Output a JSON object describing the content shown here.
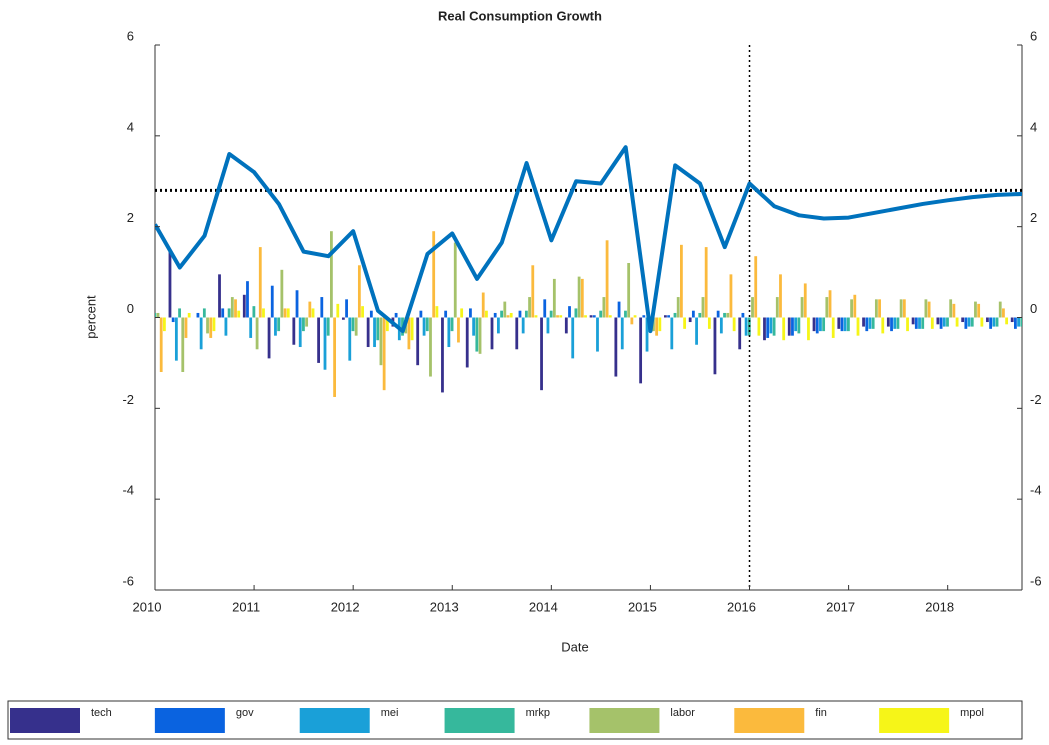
{
  "chart_data": {
    "type": "bar_line",
    "title": "Real Consumption Growth",
    "x_label": "Date",
    "y_label": "percent",
    "x": [
      2010,
      2010.25,
      2010.5,
      2010.75,
      2011,
      2011.25,
      2011.5,
      2011.75,
      2012,
      2012.25,
      2012.5,
      2012.75,
      2013,
      2013.25,
      2013.5,
      2013.75,
      2014,
      2014.25,
      2014.5,
      2014.75,
      2015,
      2015.25,
      2015.5,
      2015.75,
      2016,
      2016.25,
      2016.5,
      2016.75,
      2017,
      2017.25,
      2017.5,
      2017.75,
      2018,
      2018.25,
      2018.5,
      2018.75
    ],
    "xlim": [
      2010,
      2018.75
    ],
    "xticks": [
      2010,
      2011,
      2012,
      2013,
      2014,
      2015,
      2016,
      2017,
      2018
    ],
    "ylim": [
      -6,
      6
    ],
    "yticks": [
      6,
      4,
      2,
      0,
      -2,
      -4,
      -6
    ],
    "y2lim": [
      -6,
      6
    ],
    "y2ticks": [
      6,
      4,
      2,
      0,
      -2,
      -4,
      -6
    ],
    "hline": 2.8,
    "vline": 2016,
    "legend": "bottom",
    "series": [
      {
        "name": "tech",
        "color": "#36308c",
        "values": [
          -0.7,
          1.5,
          0,
          0.95,
          0.5,
          -0.9,
          -0.6,
          -1.0,
          -0.05,
          -0.65,
          -0.2,
          -1.05,
          -1.65,
          -1.1,
          -0.7,
          -0.7,
          -1.6,
          -0.35,
          0.05,
          -1.3,
          -1.45,
          0.05,
          -0.1,
          -1.25,
          -0.7,
          -0.5,
          -0.4,
          -0.3,
          -0.25,
          -0.2,
          -0.2,
          -0.15,
          -0.15,
          -0.1,
          -0.1,
          -0.1
        ]
      },
      {
        "name": "gov",
        "color": "#0a63e0",
        "values": [
          0,
          -0.1,
          0.1,
          0.2,
          0.8,
          0.7,
          0.6,
          0.45,
          0.4,
          0.15,
          0.1,
          0.15,
          0.15,
          0.2,
          0.1,
          0.15,
          0.4,
          0.25,
          0.05,
          0.35,
          0.05,
          0.05,
          0.15,
          0.15,
          0.1,
          -0.45,
          -0.4,
          -0.35,
          -0.3,
          -0.3,
          -0.3,
          -0.25,
          -0.25,
          -0.25,
          -0.25,
          -0.25
        ]
      },
      {
        "name": "mei",
        "color": "#1aa0d8",
        "values": [
          -0.4,
          -0.95,
          -0.7,
          -0.4,
          -0.45,
          -0.4,
          -0.65,
          -1.15,
          -0.95,
          -0.65,
          -0.5,
          -0.4,
          -0.65,
          -0.4,
          -0.35,
          -0.35,
          -0.35,
          -0.9,
          -0.75,
          -0.7,
          -0.75,
          -0.7,
          -0.6,
          -0.35,
          -0.4,
          -0.35,
          -0.3,
          -0.3,
          -0.3,
          -0.25,
          -0.25,
          -0.25,
          -0.2,
          -0.2,
          -0.2,
          -0.2
        ]
      },
      {
        "name": "mrkp",
        "color": "#36b89c",
        "values": [
          0.1,
          0.2,
          0.2,
          0.2,
          0.25,
          -0.3,
          -0.3,
          -0.4,
          -0.3,
          -0.5,
          -0.4,
          -0.3,
          -0.3,
          -0.75,
          0.15,
          0.15,
          0.15,
          0.2,
          0.15,
          0.15,
          -0.1,
          0.1,
          0.1,
          0.1,
          -0.4,
          -0.4,
          -0.35,
          -0.3,
          -0.3,
          -0.25,
          -0.25,
          -0.25,
          -0.2,
          -0.2,
          -0.2,
          -0.2
        ]
      },
      {
        "name": "labor",
        "color": "#a5c26a",
        "values": [
          0.1,
          -1.2,
          -0.35,
          0.45,
          -0.7,
          1.05,
          -0.2,
          1.9,
          -0.4,
          -1.05,
          -0.35,
          -1.3,
          1.65,
          -0.8,
          0.35,
          0.45,
          0.85,
          0.9,
          0.45,
          1.2,
          -0.3,
          0.45,
          0.45,
          0.1,
          0.45,
          0.45,
          0.45,
          0.45,
          0.4,
          0.4,
          0.4,
          0.4,
          0.4,
          0.35,
          0.35,
          0.3
        ]
      },
      {
        "name": "fin",
        "color": "#fbba3d",
        "values": [
          -1.2,
          -0.45,
          -0.45,
          0.4,
          1.55,
          0.2,
          0.35,
          -1.75,
          1.15,
          -1.6,
          -0.7,
          1.9,
          -0.55,
          0.55,
          0.05,
          1.15,
          0.05,
          0.85,
          1.7,
          -0.15,
          -0.4,
          1.6,
          1.55,
          0.95,
          1.35,
          0.95,
          0.75,
          0.6,
          0.5,
          0.4,
          0.4,
          0.35,
          0.3,
          0.3,
          0.2,
          0.15
        ]
      },
      {
        "name": "mpol",
        "color": "#f6f518",
        "values": [
          -0.3,
          0.1,
          -0.3,
          0.15,
          0.2,
          0.2,
          0.2,
          0.3,
          0.25,
          -0.3,
          -0.5,
          0.25,
          0.2,
          0.15,
          0.1,
          0.05,
          0.05,
          0.05,
          0.05,
          0.05,
          -0.3,
          -0.25,
          -0.25,
          -0.3,
          -0.4,
          -0.5,
          -0.5,
          -0.45,
          -0.4,
          -0.35,
          -0.3,
          -0.25,
          -0.2,
          -0.2,
          -0.15,
          -0.1
        ]
      }
    ],
    "line": {
      "color": "#0072bd",
      "values": [
        2.05,
        1.1,
        1.8,
        3.6,
        3.2,
        2.5,
        1.45,
        1.35,
        1.9,
        0.15,
        -0.3,
        1.4,
        1.85,
        0.85,
        1.65,
        3.4,
        1.7,
        3.0,
        2.95,
        3.75,
        -0.3,
        3.35,
        2.95,
        1.55,
        2.95,
        2.45,
        2.25,
        2.18,
        2.2,
        2.3,
        2.4,
        2.5,
        2.58,
        2.65,
        2.7,
        2.72
      ]
    }
  }
}
